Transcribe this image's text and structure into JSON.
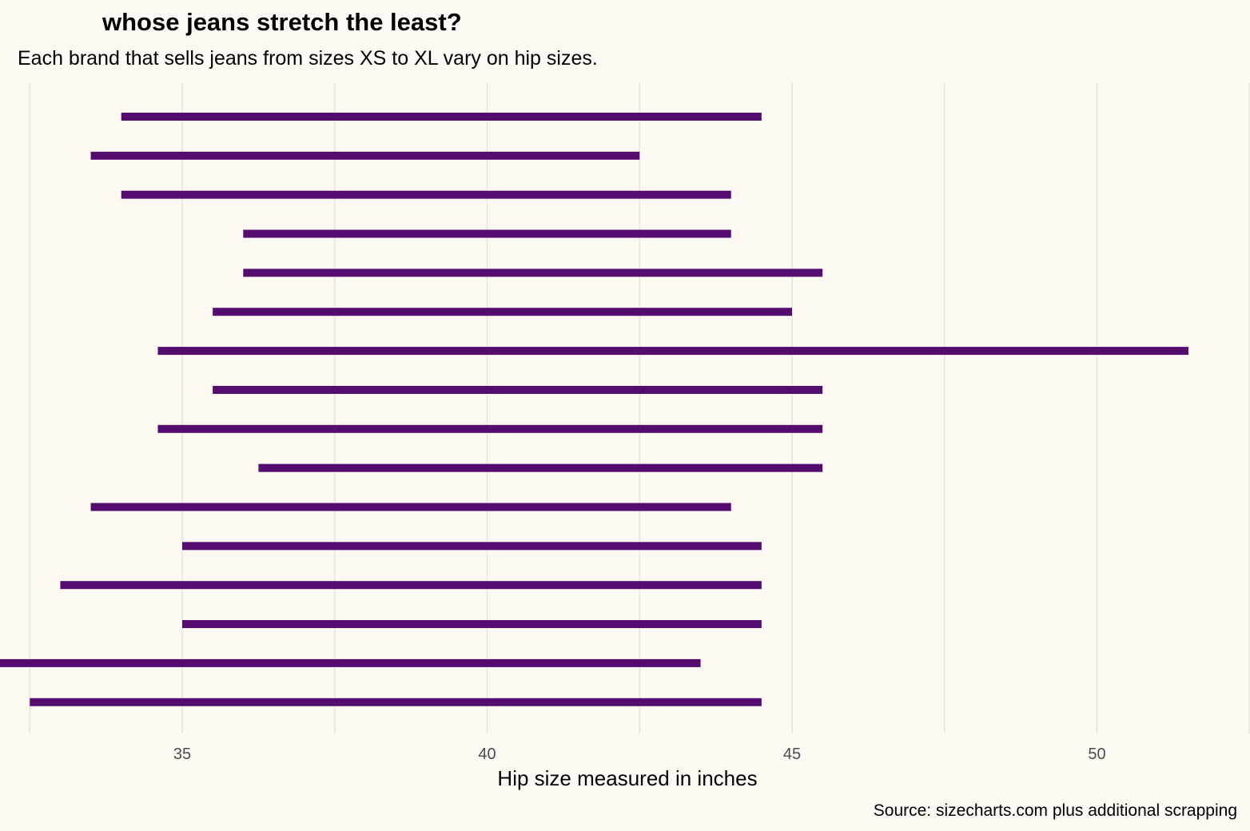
{
  "chart_data": {
    "type": "range-bar",
    "title": "whose jeans stretch the least?",
    "subtitle": "Each brand that sells jeans from sizes XS to XL vary on hip sizes.",
    "xlabel": "Hip size measured in inches",
    "ylabel": "",
    "caption": "Source: sizecharts.com plus additional scrapping",
    "xlim": [
      32.3,
      52.3
    ],
    "xticks": [
      35,
      40,
      45,
      50
    ],
    "xtick_labels": [
      "35",
      "40",
      "45",
      "50"
    ],
    "minor_gridlines": [
      32.5,
      37.5,
      42.5,
      47.5,
      52.5
    ],
    "grid": true,
    "bar_color": "#540D6E",
    "background": "#FEF9F2",
    "grid_color": "#E8E5E0",
    "ranges": [
      {
        "min": 34.0,
        "max": 44.5
      },
      {
        "min": 33.5,
        "max": 42.5
      },
      {
        "min": 34.0,
        "max": 44.0
      },
      {
        "min": 36.0,
        "max": 44.0
      },
      {
        "min": 36.0,
        "max": 45.5
      },
      {
        "min": 35.5,
        "max": 45.0
      },
      {
        "min": 34.6,
        "max": 51.5
      },
      {
        "min": 35.5,
        "max": 45.5
      },
      {
        "min": 34.6,
        "max": 45.5
      },
      {
        "min": 36.25,
        "max": 45.5
      },
      {
        "min": 33.5,
        "max": 44.0
      },
      {
        "min": 35.0,
        "max": 44.5
      },
      {
        "min": 33.0,
        "max": 44.5
      },
      {
        "min": 35.0,
        "max": 44.5
      },
      {
        "min": 32.0,
        "max": 43.5
      },
      {
        "min": 32.5,
        "max": 44.5
      }
    ]
  }
}
